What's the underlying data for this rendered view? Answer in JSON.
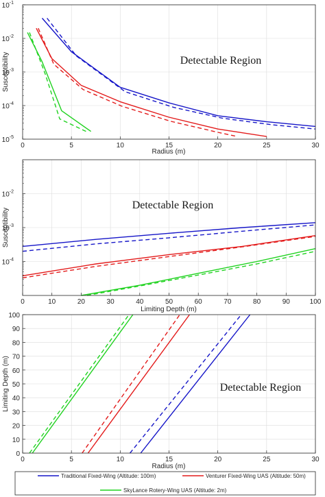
{
  "chart_data": [
    {
      "type": "line",
      "annotation": "Detectable Region",
      "xlabel": "Radius (m)",
      "ylabel": "Susceptibility",
      "xscale": "linear",
      "yscale": "log",
      "xlim": [
        0,
        30
      ],
      "ylim": [
        1e-05,
        0.1
      ],
      "xticks": [
        0,
        5,
        10,
        15,
        20,
        25,
        30
      ],
      "yticks": [
        1e-05,
        0.0001,
        0.001,
        0.01,
        0.1
      ],
      "ytick_labels": [
        [
          "10",
          "-5"
        ],
        [
          "10",
          "-4"
        ],
        [
          "10",
          "-3"
        ],
        [
          "10",
          "-2"
        ],
        [
          "10",
          "-1"
        ]
      ],
      "grid": true,
      "series": [
        {
          "color": "#1515c8",
          "dash": false,
          "x": [
            2,
            5,
            10,
            15,
            20,
            25,
            30
          ],
          "y": [
            0.04,
            0.004,
            0.00035,
            0.00012,
            5e-05,
            3.3e-05,
            2.4e-05
          ]
        },
        {
          "color": "#1515c8",
          "dash": true,
          "x": [
            2.5,
            5.5,
            10.5,
            15.5,
            20.5,
            25.5,
            30
          ],
          "y": [
            0.04,
            0.003,
            0.00026,
            8.8e-05,
            4.2e-05,
            2.7e-05,
            2e-05
          ]
        },
        {
          "color": "#e31a1a",
          "dash": false,
          "x": [
            1.4,
            3,
            6,
            10,
            15,
            20,
            25
          ],
          "y": [
            0.02,
            0.0025,
            0.0004,
            0.00013,
            4.5e-05,
            2e-05,
            1.2e-05
          ]
        },
        {
          "color": "#e31a1a",
          "dash": true,
          "x": [
            1.6,
            3.2,
            6.2,
            10.2,
            15.2,
            20,
            22
          ],
          "y": [
            0.02,
            0.0017,
            0.0003,
            9.5e-05,
            3.4e-05,
            1.6e-05,
            1.2e-05
          ]
        },
        {
          "color": "#1fd21f",
          "dash": false,
          "x": [
            0.5,
            2,
            4,
            7
          ],
          "y": [
            0.015,
            0.002,
            7e-05,
            1.7e-05
          ]
        },
        {
          "color": "#1fd21f",
          "dash": true,
          "x": [
            0.7,
            2.3,
            3.8,
            6.5
          ],
          "y": [
            0.015,
            0.0009,
            4e-05,
            1.7e-05
          ]
        }
      ]
    },
    {
      "type": "line",
      "annotation": "Detectable Region",
      "xlabel": "Limiting Depth (m)",
      "ylabel": "Susceptibility",
      "xscale": "linear",
      "yscale": "log",
      "xlim": [
        0,
        100
      ],
      "ylim": [
        1e-05,
        0.1
      ],
      "xticks": [
        0,
        10,
        20,
        30,
        40,
        50,
        60,
        70,
        80,
        90,
        100
      ],
      "yticks": [
        0.0001,
        0.001,
        0.01
      ],
      "ytick_labels": [
        [
          "10",
          "-4"
        ],
        [
          "10",
          "-3"
        ],
        [
          "10",
          "-2"
        ]
      ],
      "grid": true,
      "series": [
        {
          "color": "#1515c8",
          "dash": false,
          "x": [
            0,
            25,
            50,
            75,
            100
          ],
          "y": [
            0.00028,
            0.00045,
            0.00068,
            0.001,
            0.0014
          ]
        },
        {
          "color": "#1515c8",
          "dash": true,
          "x": [
            0,
            25,
            50,
            75,
            100
          ],
          "y": [
            0.0002,
            0.00033,
            0.0005,
            0.00078,
            0.0012
          ]
        },
        {
          "color": "#e31a1a",
          "dash": false,
          "x": [
            0,
            25,
            50,
            75,
            100
          ],
          "y": [
            3.8e-05,
            8.5e-05,
            0.00016,
            0.00028,
            0.00058
          ]
        },
        {
          "color": "#e31a1a",
          "dash": true,
          "x": [
            0,
            25,
            50,
            75,
            100
          ],
          "y": [
            3.3e-05,
            7.2e-05,
            0.00014,
            0.00027,
            0.00055
          ]
        },
        {
          "color": "#1fd21f",
          "dash": false,
          "x": [
            20,
            40,
            60,
            80,
            100
          ],
          "y": [
            1e-05,
            2e-05,
            4.5e-05,
            0.0001,
            0.00024
          ]
        },
        {
          "color": "#1fd21f",
          "dash": true,
          "x": [
            22,
            40,
            60,
            80,
            100
          ],
          "y": [
            1e-05,
            1.9e-05,
            4e-05,
            8.5e-05,
            0.0002
          ]
        }
      ]
    },
    {
      "type": "line",
      "annotation": "Detectable Region",
      "xlabel": "Radius (m)",
      "ylabel": "Limiting Depth (m)",
      "xscale": "linear",
      "yscale": "linear",
      "xlim": [
        0,
        30
      ],
      "ylim": [
        0,
        100
      ],
      "xticks": [
        0,
        5,
        10,
        15,
        20,
        25,
        30
      ],
      "yticks": [
        0,
        10,
        20,
        30,
        40,
        50,
        60,
        70,
        80,
        90,
        100
      ],
      "grid": true,
      "series": [
        {
          "color": "#1515c8",
          "dash": false,
          "x": [
            12.1,
            23.3
          ],
          "y": [
            0,
            100
          ]
        },
        {
          "color": "#1515c8",
          "dash": true,
          "x": [
            11,
            22.4
          ],
          "y": [
            0,
            100
          ]
        },
        {
          "color": "#e31a1a",
          "dash": false,
          "x": [
            6.7,
            17.1
          ],
          "y": [
            0,
            100
          ]
        },
        {
          "color": "#e31a1a",
          "dash": true,
          "x": [
            6.1,
            16.1
          ],
          "y": [
            0,
            100
          ]
        },
        {
          "color": "#1fd21f",
          "dash": false,
          "x": [
            1,
            11.3
          ],
          "y": [
            0,
            100
          ]
        },
        {
          "color": "#1fd21f",
          "dash": true,
          "x": [
            0.7,
            10.9
          ],
          "y": [
            0,
            100
          ]
        }
      ],
      "legend": [
        {
          "label": "Traditional Fixed-Wing (Altitude: 100m)",
          "color": "#1515c8"
        },
        {
          "label": "Venturer Fixed-Wing UAS (Altitude: 50m)",
          "color": "#e31a1a"
        },
        {
          "label": "SkyLance Rotery-Wing UAS (Altitude: 2m)",
          "color": "#1fd21f"
        }
      ],
      "legend_position": "bottom"
    }
  ]
}
